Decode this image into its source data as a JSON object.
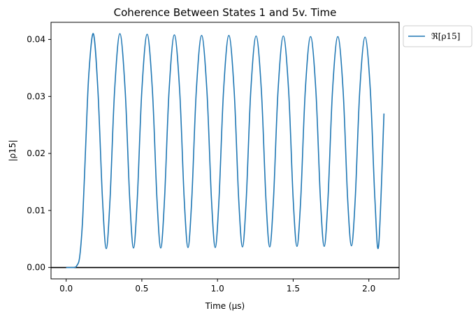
{
  "chart_data": {
    "type": "line",
    "title": "Coherence Between States 1 and 5v. Time",
    "xlabel": "Time (μs)",
    "ylabel": "|ρ15|",
    "xlim": [
      -0.1,
      2.2
    ],
    "ylim": [
      -0.002,
      0.043
    ],
    "xticks": [
      0.0,
      0.5,
      1.0,
      1.5,
      2.0
    ],
    "xtick_labels": [
      "0.0",
      "0.5",
      "1.0",
      "1.5",
      "2.0"
    ],
    "yticks": [
      0.0,
      0.01,
      0.02,
      0.03,
      0.04
    ],
    "ytick_labels": [
      "0.00",
      "0.01",
      "0.02",
      "0.03",
      "0.04"
    ],
    "grid": false,
    "legend_position": "outside-top-right",
    "horizontal_line": {
      "y": 0.0,
      "color": "#000000"
    },
    "series": [
      {
        "name": "ℜ[ρ15]",
        "color": "#1f77b4",
        "x": [
          0.0,
          0.05,
          0.07,
          0.09,
          0.11,
          0.13,
          0.15,
          0.18,
          0.21,
          0.24,
          0.265,
          0.29,
          0.32,
          0.355,
          0.39,
          0.42,
          0.445,
          0.47,
          0.5,
          0.535,
          0.57,
          0.6,
          0.625,
          0.65,
          0.68,
          0.715,
          0.75,
          0.78,
          0.805,
          0.83,
          0.86,
          0.895,
          0.93,
          0.96,
          0.985,
          1.01,
          1.04,
          1.075,
          1.11,
          1.14,
          1.165,
          1.19,
          1.22,
          1.255,
          1.29,
          1.32,
          1.345,
          1.37,
          1.4,
          1.435,
          1.47,
          1.5,
          1.525,
          1.55,
          1.58,
          1.615,
          1.65,
          1.68,
          1.705,
          1.73,
          1.76,
          1.795,
          1.83,
          1.86,
          1.885,
          1.91,
          1.94,
          1.975,
          2.01,
          2.04,
          2.065,
          2.1
        ],
        "y": [
          0.0,
          0.0,
          0.0003,
          0.002,
          0.009,
          0.022,
          0.034,
          0.041,
          0.031,
          0.012,
          0.0033,
          0.012,
          0.031,
          0.041,
          0.031,
          0.012,
          0.0034,
          0.012,
          0.031,
          0.0409,
          0.031,
          0.012,
          0.0034,
          0.012,
          0.031,
          0.0408,
          0.031,
          0.012,
          0.0035,
          0.012,
          0.031,
          0.0407,
          0.031,
          0.012,
          0.0035,
          0.012,
          0.031,
          0.0407,
          0.031,
          0.012,
          0.0036,
          0.012,
          0.031,
          0.0406,
          0.031,
          0.012,
          0.0036,
          0.012,
          0.031,
          0.0406,
          0.031,
          0.012,
          0.0037,
          0.012,
          0.031,
          0.0405,
          0.031,
          0.012,
          0.0037,
          0.012,
          0.031,
          0.0405,
          0.031,
          0.012,
          0.0038,
          0.012,
          0.031,
          0.0404,
          0.031,
          0.012,
          0.0039,
          0.027
        ]
      }
    ]
  }
}
